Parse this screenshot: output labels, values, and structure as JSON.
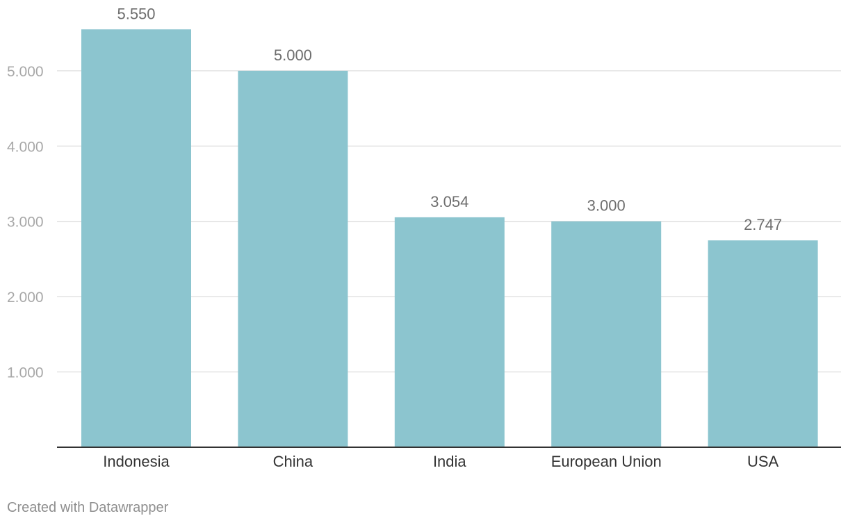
{
  "chart_data": {
    "type": "bar",
    "categories": [
      "Indonesia",
      "China",
      "India",
      "European Union",
      "USA"
    ],
    "values": [
      5550,
      5000,
      3054,
      3000,
      2747
    ],
    "value_labels": [
      "5.550",
      "5.000",
      "3.054",
      "3.000",
      "2.747"
    ],
    "y_ticks": [
      1000,
      2000,
      3000,
      4000,
      5000
    ],
    "y_tick_labels": [
      "1.000",
      "2.000",
      "3.000",
      "4.000",
      "5.000"
    ],
    "ylim": [
      0,
      5550
    ],
    "grid": true,
    "bar_color": "#8cc5cf"
  },
  "footer": {
    "credit": "Created with Datawrapper"
  }
}
